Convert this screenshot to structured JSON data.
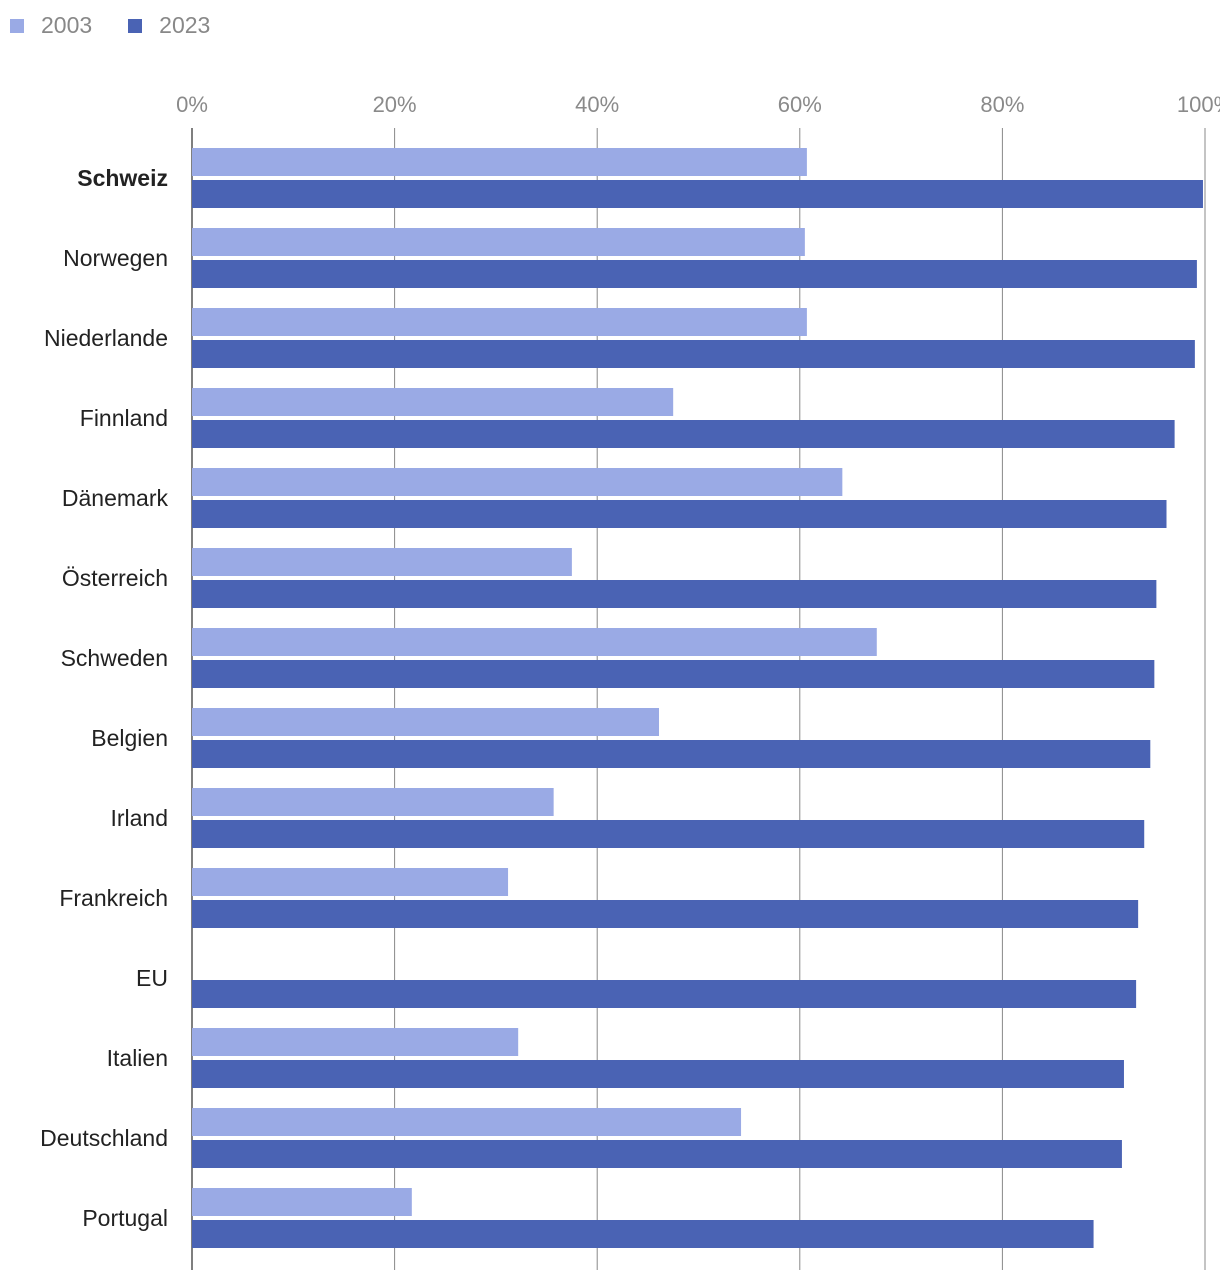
{
  "legend": [
    {
      "label": "2003",
      "color": "#9aaae5"
    },
    {
      "label": "2023",
      "color": "#4a63b4"
    }
  ],
  "chart_data": {
    "type": "bar",
    "orientation": "horizontal",
    "xlim": [
      0,
      100
    ],
    "x_ticks": [
      "0%",
      "20%",
      "40%",
      "60%",
      "80%",
      "100%"
    ],
    "x_tick_values": [
      0,
      20,
      40,
      60,
      80,
      100
    ],
    "grid": true,
    "legend_position": "top-left",
    "highlighted_category": "Schweiz",
    "categories": [
      "Schweiz",
      "Norwegen",
      "Niederlande",
      "Finnland",
      "Dänemark",
      "Österreich",
      "Schweden",
      "Belgien",
      "Irland",
      "Frankreich",
      "EU",
      "Italien",
      "Deutschland",
      "Portugal"
    ],
    "series": [
      {
        "name": "2003",
        "color": "#9aaae5",
        "values": [
          60.7,
          60.5,
          60.7,
          47.5,
          64.2,
          37.5,
          67.6,
          46.1,
          35.7,
          31.2,
          null,
          32.2,
          54.2,
          21.7
        ]
      },
      {
        "name": "2023",
        "color": "#4a63b4",
        "values": [
          99.8,
          99.2,
          99.0,
          97.0,
          96.2,
          95.2,
          95.0,
          94.6,
          94.0,
          93.4,
          93.2,
          92.0,
          91.8,
          89.0
        ]
      }
    ]
  }
}
